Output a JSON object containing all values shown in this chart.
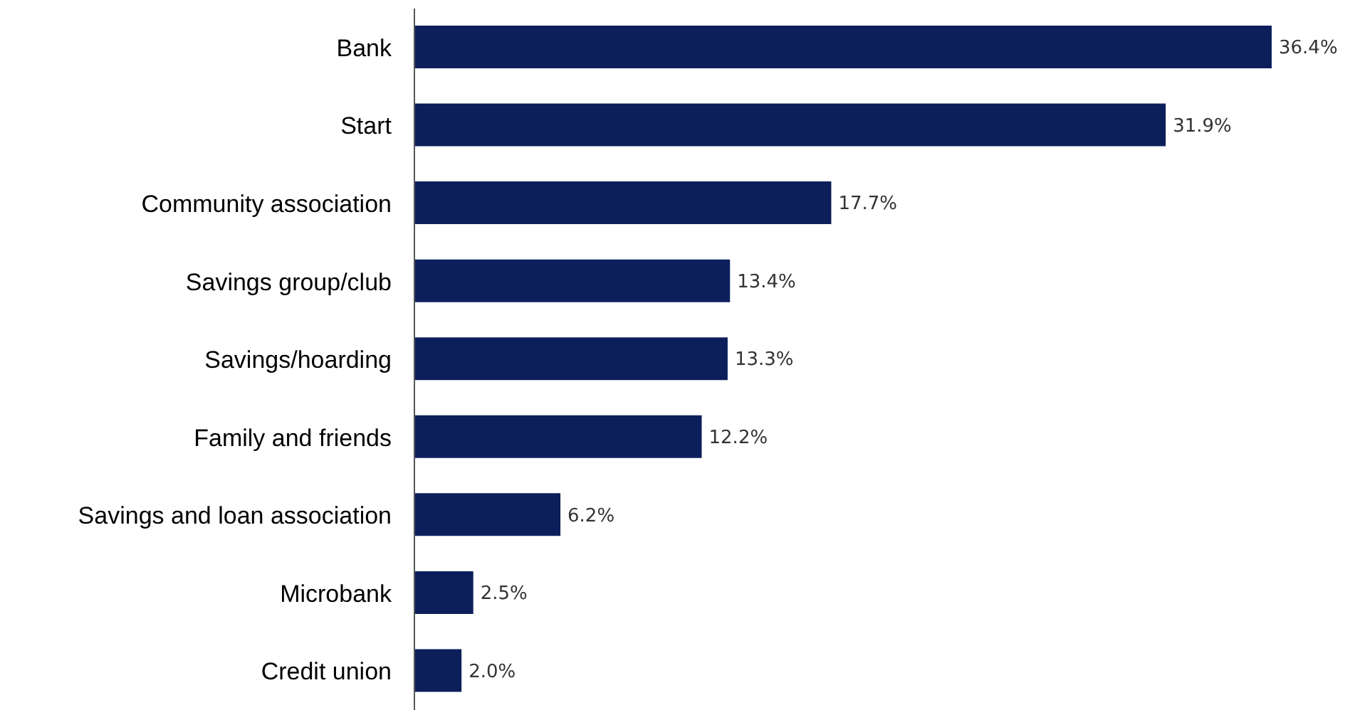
{
  "chart_data": {
    "type": "bar",
    "orientation": "horizontal",
    "categories": [
      "Bank",
      "Start",
      "Community association",
      "Savings group/club",
      "Savings/hoarding",
      "Family and friends",
      "Savings and loan association",
      "Microbank",
      "Credit union"
    ],
    "values": [
      36.4,
      31.9,
      17.7,
      13.4,
      13.3,
      12.2,
      6.2,
      2.5,
      2.0
    ],
    "value_labels": [
      "36.4%",
      "31.9%",
      "17.7%",
      "13.4%",
      "13.3%",
      "12.2%",
      "6.2%",
      "2.5%",
      "2.0%"
    ],
    "color": "#0c1f5b",
    "grid": false,
    "legend": false
  }
}
